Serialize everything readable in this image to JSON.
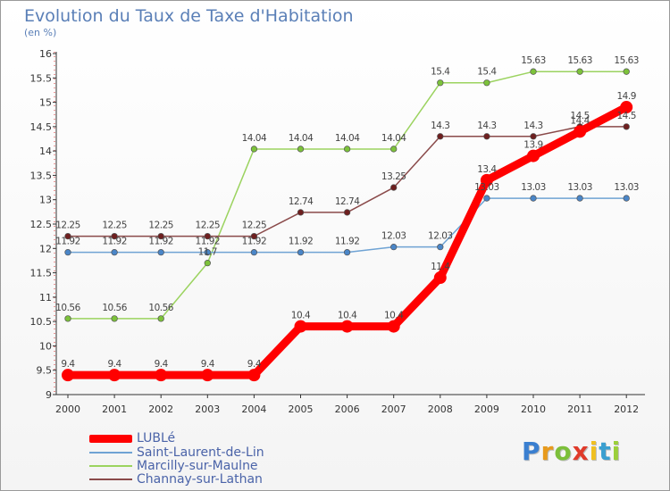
{
  "title": "Evolution du Taux de Taxe d'Habitation",
  "unit": "(en %)",
  "logo": [
    "P",
    "r",
    "o",
    "x",
    "i",
    "t",
    "i"
  ],
  "legend": [
    {
      "label": "LUBLé",
      "color": "#ff0000"
    },
    {
      "label": "Saint-Laurent-de-Lin",
      "color": "#6fa3d4"
    },
    {
      "label": "Marcilly-sur-Maulne",
      "color": "#9bd35f"
    },
    {
      "label": "Channay-sur-Lathan",
      "color": "#8a4a4a"
    }
  ],
  "chart_data": {
    "type": "line",
    "title": "Evolution du Taux de Taxe d'Habitation",
    "ylabel": "(en %)",
    "xlabel": "",
    "categories": [
      "2000",
      "2001",
      "2002",
      "2003",
      "2004",
      "2005",
      "2006",
      "2007",
      "2008",
      "2009",
      "2010",
      "2011",
      "2012"
    ],
    "ylim": [
      9,
      16
    ],
    "yticks": [
      "9",
      "9.5",
      "10",
      "10.5",
      "11",
      "11.5",
      "12",
      "12.5",
      "13",
      "13.5",
      "14",
      "14.5",
      "15",
      "15.5",
      "16"
    ],
    "grid": false,
    "legend_position": "bottom-left",
    "series": [
      {
        "name": "LUBLé",
        "color": "#ff0000",
        "marker": "#ff0000",
        "values": [
          9.4,
          9.4,
          9.4,
          9.4,
          9.4,
          10.4,
          10.4,
          10.4,
          11.4,
          13.4,
          13.9,
          14.4,
          14.9
        ],
        "labels": [
          "9.4",
          "9.4",
          "9.4",
          "9.4",
          "9.4",
          "10.4",
          "10.4",
          "10.4",
          "11.4",
          "13.4",
          "13.9",
          "14.4",
          "14.9"
        ]
      },
      {
        "name": "Saint-Laurent-de-Lin",
        "color": "#6fa3d4",
        "marker": "#4a86c8",
        "values": [
          11.92,
          11.92,
          11.92,
          11.92,
          11.92,
          11.92,
          11.92,
          12.03,
          12.03,
          13.03,
          13.03,
          13.03,
          13.03
        ],
        "labels": [
          "11.92",
          "11.92",
          "11.92",
          "11.92",
          "11.92",
          "11.92",
          "11.92",
          "12.03",
          "12.03",
          "13.03",
          "13.03",
          "13.03",
          "13.03"
        ]
      },
      {
        "name": "Marcilly-sur-Maulne",
        "color": "#9bd35f",
        "marker": "#7cc23a",
        "values": [
          10.56,
          10.56,
          10.56,
          11.7,
          14.04,
          14.04,
          14.04,
          14.04,
          15.4,
          15.4,
          15.63,
          15.63,
          15.63
        ],
        "labels": [
          "10.56",
          "10.56",
          "10.56",
          "11.7",
          "14.04",
          "14.04",
          "14.04",
          "14.04",
          "15.4",
          "15.4",
          "15.63",
          "15.63",
          "15.63"
        ]
      },
      {
        "name": "Channay-sur-Lathan",
        "color": "#8a4a4a",
        "marker": "#6e1f1f",
        "values": [
          12.25,
          12.25,
          12.25,
          12.25,
          12.25,
          12.74,
          12.74,
          13.25,
          14.3,
          14.3,
          14.3,
          14.5,
          14.5
        ],
        "labels": [
          "12.25",
          "12.25",
          "12.25",
          "12.25",
          "12.25",
          "12.74",
          "12.74",
          "13.25",
          "14.3",
          "14.3",
          "14.3",
          "14.5",
          "14.5"
        ]
      }
    ]
  }
}
